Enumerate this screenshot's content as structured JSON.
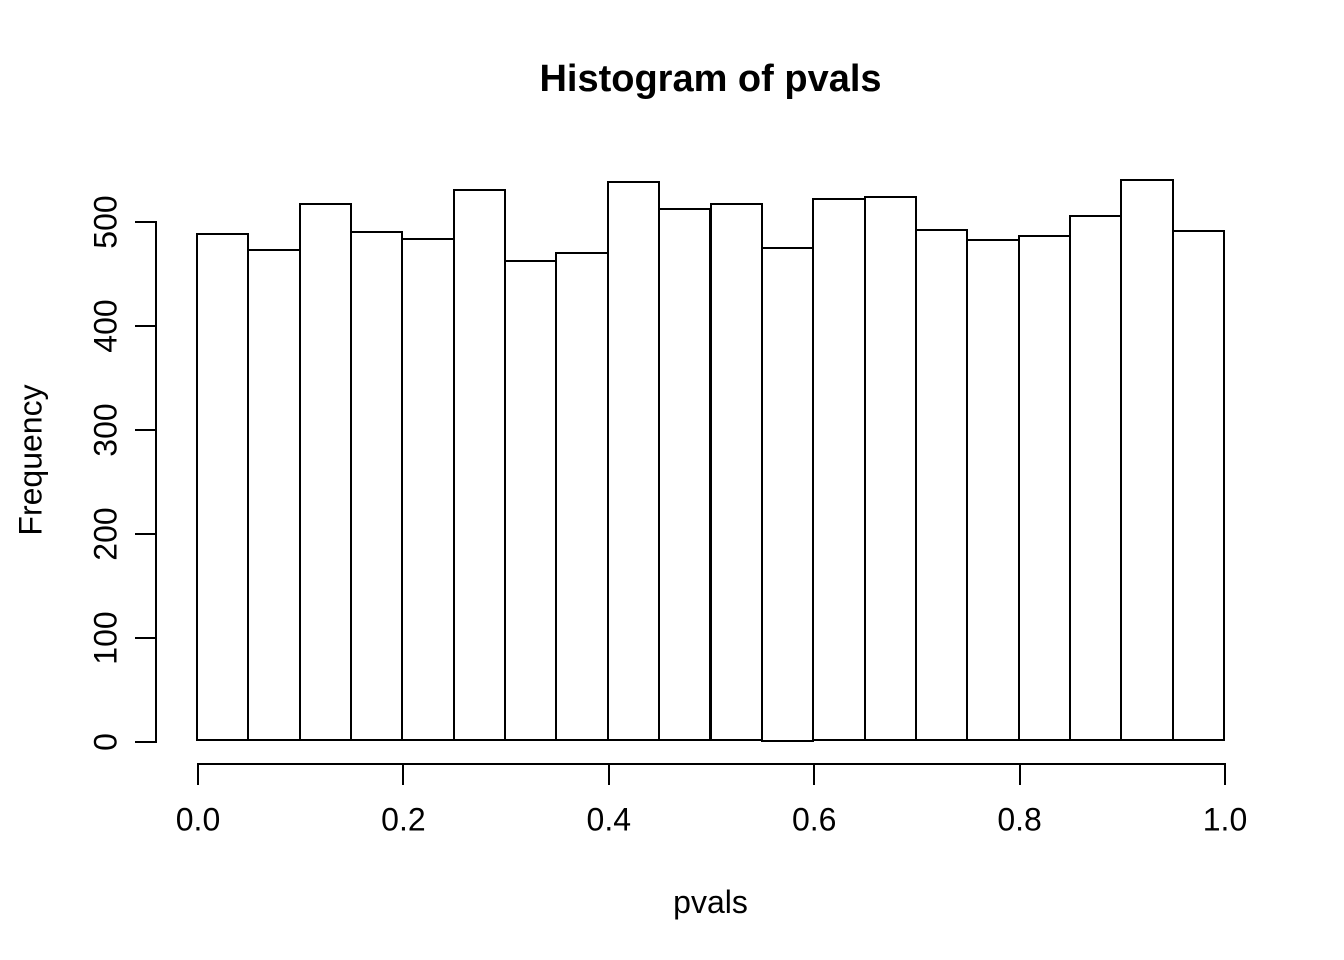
{
  "chart_data": {
    "type": "bar",
    "subtype": "histogram",
    "title": "Histogram of pvals",
    "xlabel": "pvals",
    "ylabel": "Frequency",
    "bin_edges": [
      0.0,
      0.05,
      0.1,
      0.15,
      0.2,
      0.25,
      0.3,
      0.35,
      0.4,
      0.45,
      0.5,
      0.55,
      0.6,
      0.65,
      0.7,
      0.75,
      0.8,
      0.85,
      0.9,
      0.95,
      1.0
    ],
    "counts": [
      488,
      473,
      517,
      490,
      483,
      530,
      462,
      470,
      538,
      512,
      517,
      475,
      522,
      524,
      492,
      482,
      486,
      505,
      540,
      491
    ],
    "x_ticks": [
      {
        "value": 0.0,
        "label": "0.0"
      },
      {
        "value": 0.2,
        "label": "0.2"
      },
      {
        "value": 0.4,
        "label": "0.4"
      },
      {
        "value": 0.6,
        "label": "0.6"
      },
      {
        "value": 0.8,
        "label": "0.8"
      },
      {
        "value": 1.0,
        "label": "1.0"
      }
    ],
    "y_ticks": [
      {
        "value": 0,
        "label": "0"
      },
      {
        "value": 100,
        "label": "100"
      },
      {
        "value": 200,
        "label": "200"
      },
      {
        "value": 300,
        "label": "300"
      },
      {
        "value": 400,
        "label": "400"
      },
      {
        "value": 500,
        "label": "500"
      }
    ],
    "xlim": [
      0.0,
      1.0
    ],
    "ylim": [
      0,
      540
    ],
    "grid": "off",
    "legend": "none",
    "bar_fill_color": "#ffffff",
    "bar_border_color": "#000000",
    "axis_color": "#000000",
    "background_color": "#ffffff"
  }
}
